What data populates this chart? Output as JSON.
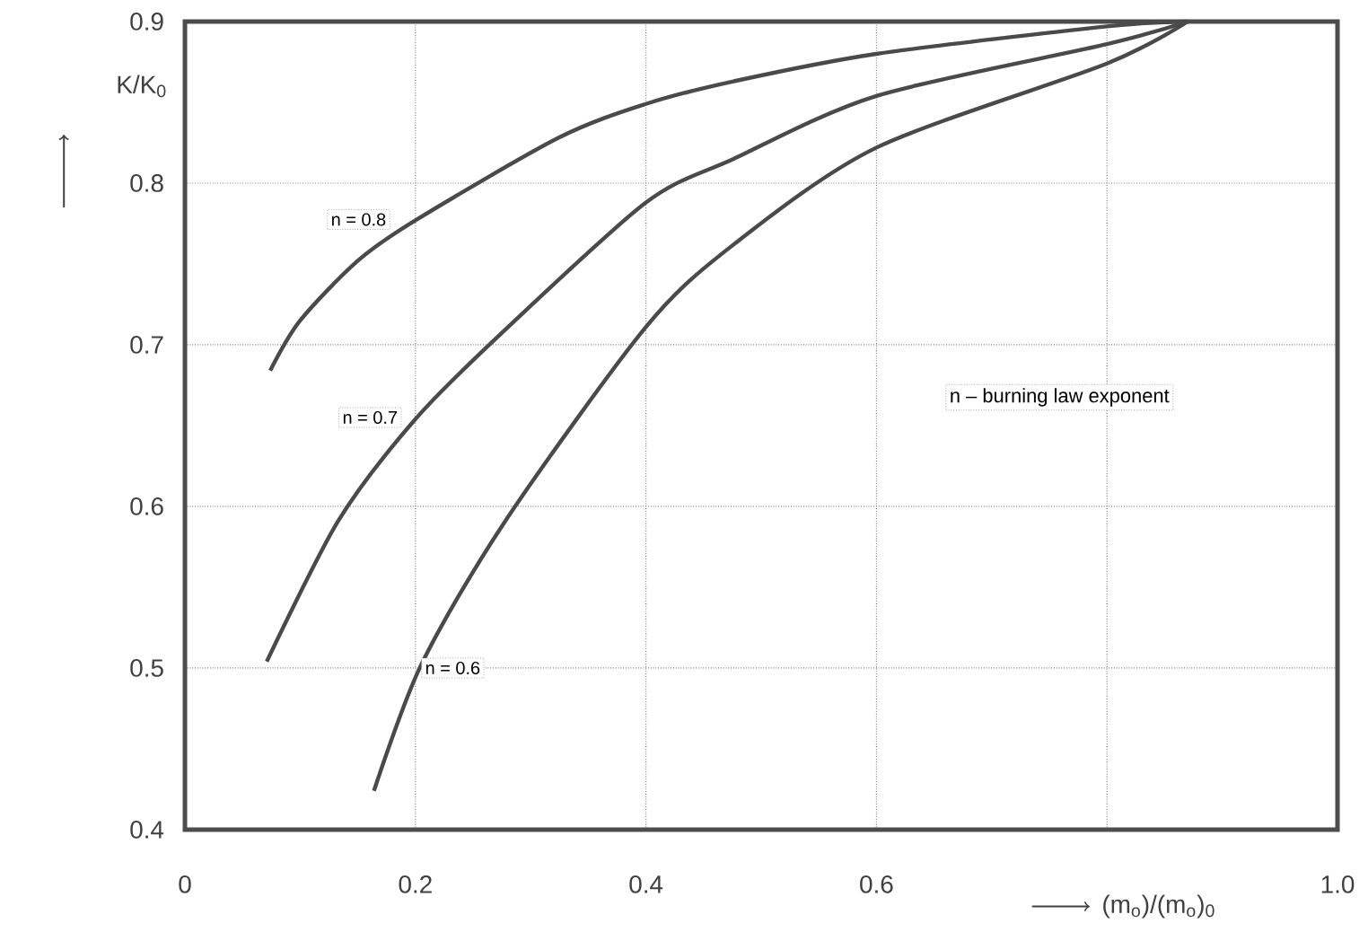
{
  "chart_data": {
    "type": "line",
    "xlabel": "(m$_{o}$)/(m$_{o}$)$_{0}$",
    "ylabel": "K/K$_{0}$",
    "annotations": [
      "n – burning law exponent"
    ],
    "series": [
      {
        "name": "n = 0.8",
        "color": "#4a4a4a",
        "x": [
          0.074,
          0.1,
          0.15,
          0.2,
          0.324,
          0.4,
          0.476,
          0.6,
          0.8,
          0.87
        ],
        "values": [
          0.684,
          0.715,
          0.752,
          0.777,
          0.828,
          0.849,
          0.863,
          0.88,
          0.897,
          0.9
        ]
      },
      {
        "name": "n = 0.7",
        "color": "#4a4a4a",
        "x": [
          0.071,
          0.133,
          0.2,
          0.273,
          0.4,
          0.476,
          0.6,
          0.8,
          0.87
        ],
        "values": [
          0.504,
          0.591,
          0.654,
          0.706,
          0.788,
          0.815,
          0.854,
          0.886,
          0.9
        ]
      },
      {
        "name": "n = 0.6",
        "color": "#4a4a4a",
        "x": [
          0.164,
          0.205,
          0.278,
          0.4,
          0.476,
          0.6,
          0.8,
          0.87
        ],
        "values": [
          0.424,
          0.502,
          0.591,
          0.711,
          0.762,
          0.822,
          0.874,
          0.9
        ]
      }
    ],
    "xlim": [
      0,
      1.0
    ],
    "ylim": [
      0.4,
      0.9
    ],
    "xticks": [
      0,
      0.2,
      0.4,
      0.6,
      {
        "value": 0.8,
        "label": null
      },
      {
        "value": 1.0,
        "label": "1.0"
      }
    ],
    "yticks": [
      0.4,
      0.5,
      0.6,
      0.7,
      0.8,
      0.9
    ],
    "grid": true,
    "marker": "none",
    "line_style": "solid"
  }
}
